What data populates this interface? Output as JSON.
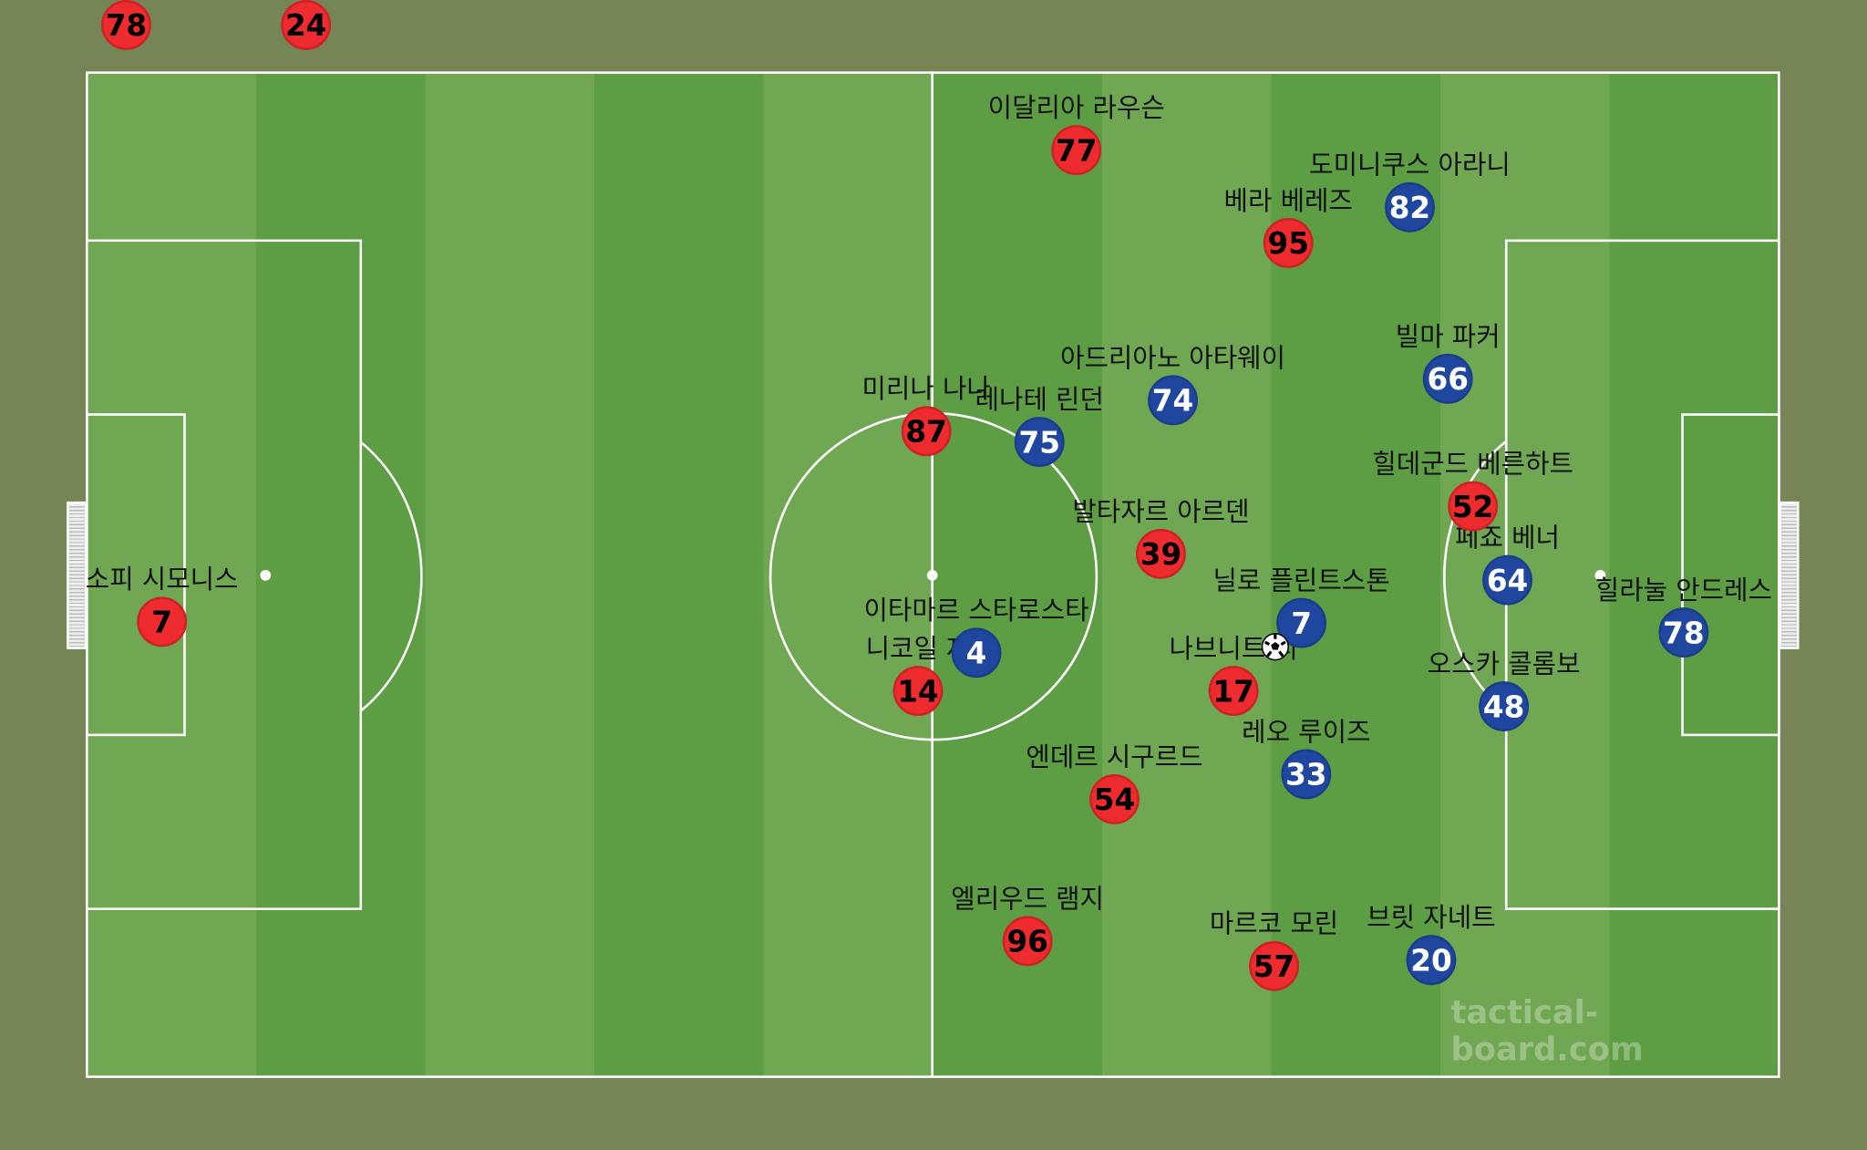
{
  "colors": {
    "team_red": "#ee2b2e",
    "team_blue": "#2047a0",
    "pitch_light": "#70a752",
    "pitch_dark": "#5d9d43",
    "background": "#768556"
  },
  "watermark": "tactical-board.com",
  "bench_red": [
    {
      "number": "78"
    },
    {
      "number": "24"
    }
  ],
  "red_players": [
    {
      "number": "77",
      "name": "이달리아 라우슨"
    },
    {
      "number": "95",
      "name": "베라 베레즈"
    },
    {
      "number": "87",
      "name": "미리나 나나"
    },
    {
      "number": "39",
      "name": "발타자르 아르덴"
    },
    {
      "number": "14",
      "name": "니코일 제"
    },
    {
      "number": "17",
      "name": "나브니트 디"
    },
    {
      "number": "54",
      "name": "엔데르 시구르드"
    },
    {
      "number": "96",
      "name": "엘리우드 램지"
    },
    {
      "number": "57",
      "name": "마르코 모린"
    },
    {
      "number": "52",
      "name": "힐데군드 베른하트"
    },
    {
      "number": "7",
      "name": "소피 시모니스"
    }
  ],
  "blue_players": [
    {
      "number": "82",
      "name": "도미니쿠스 아라니"
    },
    {
      "number": "66",
      "name": "빌마 파커"
    },
    {
      "number": "74",
      "name": "아드리아노 아타웨이"
    },
    {
      "number": "75",
      "name": "레나테 린던"
    },
    {
      "number": "4",
      "name": "이타마르 스타로스타"
    },
    {
      "number": "7",
      "name": "닐로 플린트스톤"
    },
    {
      "number": "64",
      "name": "페죠 베너"
    },
    {
      "number": "78",
      "name": "힐라눌 안드레스"
    },
    {
      "number": "48",
      "name": "오스카 콜롬보"
    },
    {
      "number": "33",
      "name": "레오 루이즈"
    },
    {
      "number": "20",
      "name": "브릿 자네트"
    }
  ],
  "ball_icon": "soccer-ball-icon"
}
